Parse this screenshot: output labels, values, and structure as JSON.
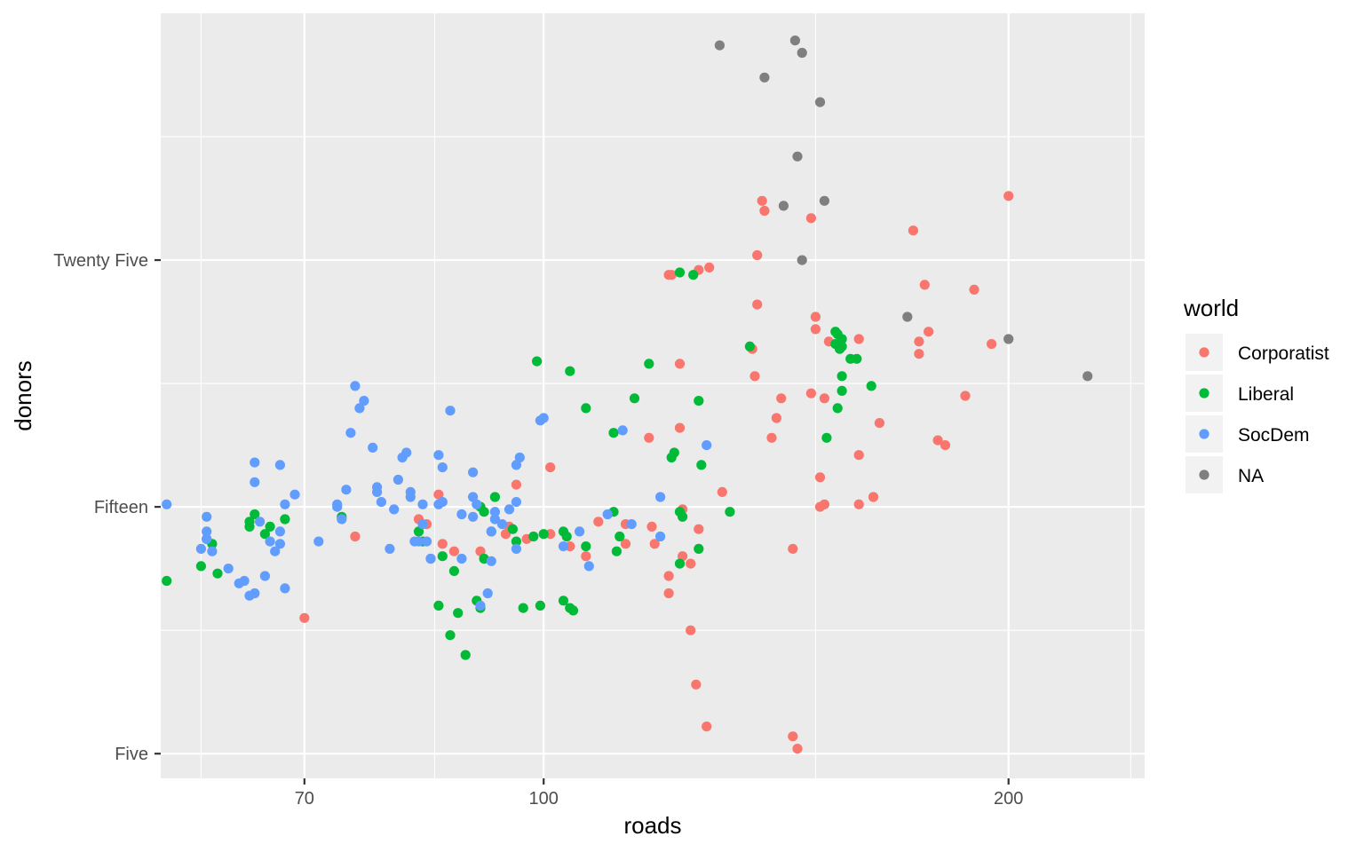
{
  "chart_data": {
    "type": "scatter",
    "xlabel": "roads",
    "ylabel": "donors",
    "x_scale": "log",
    "xlim": [
      56.5,
      245
    ],
    "ylim": [
      4,
      35
    ],
    "x_ticks": [
      {
        "value": 70,
        "label": "70"
      },
      {
        "value": 100,
        "label": "100"
      },
      {
        "value": 200,
        "label": "200"
      }
    ],
    "x_minor_ticks": [
      60,
      85,
      150,
      240
    ],
    "y_ticks": [
      {
        "value": 5,
        "label": "Five"
      },
      {
        "value": 15,
        "label": "Fifteen"
      },
      {
        "value": 25,
        "label": "Twenty Five"
      }
    ],
    "y_minor_ticks": [
      10,
      20,
      30
    ],
    "grid": true,
    "legend": {
      "title": "world",
      "position": "right",
      "entries": [
        "Corporatist",
        "Liberal",
        "SocDem",
        "NA"
      ]
    },
    "colors": {
      "Corporatist": "#F8766D",
      "Liberal": "#00BA38",
      "SocDem": "#619CFF",
      "NA": "#7F7F7F",
      "panel_background": "#EBEBEB",
      "grid": "#FFFFFF"
    },
    "series": [
      {
        "name": "Corporatist",
        "points": [
          [
            200.0,
            27.6
          ],
          [
            173.5,
            26.2
          ],
          [
            176.5,
            24.0
          ],
          [
            175.0,
            21.7
          ],
          [
            175.0,
            21.2
          ],
          [
            177.5,
            22.1
          ],
          [
            190.0,
            23.8
          ],
          [
            195.0,
            21.6
          ],
          [
            187.5,
            19.5
          ],
          [
            180.0,
            17.7
          ],
          [
            182.0,
            17.5
          ],
          [
            165.0,
            18.4
          ],
          [
            160.0,
            21.8
          ],
          [
            160.0,
            17.1
          ],
          [
            163.5,
            15.4
          ],
          [
            160.0,
            15.1
          ],
          [
            152.0,
            15.1
          ],
          [
            151.0,
            15.0
          ],
          [
            151.0,
            16.2
          ],
          [
            152.0,
            19.4
          ],
          [
            153.0,
            21.7
          ],
          [
            150.0,
            22.2
          ],
          [
            150.0,
            22.7
          ],
          [
            149.0,
            19.6
          ],
          [
            149.0,
            26.7
          ],
          [
            142.5,
            19.4
          ],
          [
            140.5,
            17.8
          ],
          [
            141.5,
            18.6
          ],
          [
            139.0,
            27.0
          ],
          [
            138.5,
            27.4
          ],
          [
            137.5,
            23.2
          ],
          [
            136.5,
            21.4
          ],
          [
            137.0,
            20.3
          ],
          [
            137.5,
            25.2
          ],
          [
            145.0,
            13.3
          ],
          [
            128.0,
            24.7
          ],
          [
            126.0,
            24.6
          ],
          [
            121.0,
            24.4
          ],
          [
            120.5,
            24.4
          ],
          [
            122.5,
            20.8
          ],
          [
            122.5,
            18.2
          ],
          [
            117.0,
            17.8
          ],
          [
            130.5,
            15.6
          ],
          [
            123.0,
            14.9
          ],
          [
            126.0,
            14.1
          ],
          [
            117.5,
            14.2
          ],
          [
            113.0,
            14.3
          ],
          [
            118.0,
            13.5
          ],
          [
            123.0,
            13.0
          ],
          [
            124.5,
            12.7
          ],
          [
            120.5,
            12.2
          ],
          [
            120.5,
            11.5
          ],
          [
            124.5,
            10.0
          ],
          [
            125.5,
            7.8
          ],
          [
            127.5,
            6.1
          ],
          [
            145.0,
            5.7
          ],
          [
            146.0,
            5.2
          ],
          [
            101.0,
            16.6
          ],
          [
            101.0,
            13.9
          ],
          [
            104.0,
            13.4
          ],
          [
            106.5,
            13.0
          ],
          [
            113.0,
            13.5
          ],
          [
            108.5,
            14.4
          ],
          [
            96.0,
            15.9
          ],
          [
            95.0,
            14.2
          ],
          [
            94.5,
            13.9
          ],
          [
            97.5,
            13.7
          ],
          [
            91.0,
            13.2
          ],
          [
            87.5,
            13.2
          ],
          [
            86.0,
            13.5
          ],
          [
            85.5,
            15.5
          ],
          [
            84.5,
            12.9
          ],
          [
            84.0,
            14.3
          ],
          [
            83.0,
            14.5
          ],
          [
            75.5,
            13.8
          ],
          [
            70.0,
            10.5
          ]
        ]
      },
      {
        "name": "Liberal",
        "points": [
          [
            122.5,
            24.5
          ],
          [
            125.0,
            24.4
          ],
          [
            136.0,
            21.5
          ],
          [
            126.0,
            19.3
          ],
          [
            163.0,
            19.9
          ],
          [
            159.5,
            21.0
          ],
          [
            158.0,
            21.0
          ],
          [
            155.0,
            22.0
          ],
          [
            156.0,
            21.8
          ],
          [
            154.5,
            21.6
          ],
          [
            154.5,
            22.1
          ],
          [
            155.5,
            21.4
          ],
          [
            156.0,
            21.5
          ],
          [
            156.0,
            20.3
          ],
          [
            156.0,
            19.7
          ],
          [
            155.0,
            19.0
          ],
          [
            152.5,
            17.8
          ],
          [
            114.5,
            19.4
          ],
          [
            106.5,
            19.0
          ],
          [
            111.0,
            18.0
          ],
          [
            117.0,
            20.8
          ],
          [
            99.0,
            20.9
          ],
          [
            104.0,
            20.5
          ],
          [
            121.5,
            17.2
          ],
          [
            122.5,
            14.8
          ],
          [
            132.0,
            14.8
          ],
          [
            111.0,
            14.8
          ],
          [
            112.0,
            13.8
          ],
          [
            103.0,
            14.0
          ],
          [
            106.5,
            13.4
          ],
          [
            111.5,
            13.2
          ],
          [
            121.0,
            17.0
          ],
          [
            126.5,
            16.7
          ],
          [
            123.0,
            14.6
          ],
          [
            126.0,
            13.3
          ],
          [
            122.5,
            12.7
          ],
          [
            103.5,
            13.8
          ],
          [
            100.0,
            13.9
          ],
          [
            98.5,
            13.8
          ],
          [
            93.0,
            15.4
          ],
          [
            91.0,
            15.0
          ],
          [
            91.5,
            14.8
          ],
          [
            95.5,
            14.1
          ],
          [
            92.5,
            14.0
          ],
          [
            96.0,
            13.6
          ],
          [
            91.5,
            12.9
          ],
          [
            83.5,
            13.6
          ],
          [
            83.0,
            14.0
          ],
          [
            86.0,
            13.0
          ],
          [
            87.5,
            12.4
          ],
          [
            85.5,
            11.0
          ],
          [
            88.0,
            10.7
          ],
          [
            87.0,
            9.8
          ],
          [
            89.0,
            9.0
          ],
          [
            90.5,
            11.2
          ],
          [
            91.0,
            10.9
          ],
          [
            103.0,
            11.2
          ],
          [
            104.0,
            10.9
          ],
          [
            104.5,
            10.8
          ],
          [
            97.0,
            10.9
          ],
          [
            99.5,
            11.0
          ],
          [
            66.0,
            13.9
          ],
          [
            66.5,
            14.2
          ],
          [
            64.5,
            14.4
          ],
          [
            64.5,
            14.2
          ],
          [
            65.0,
            14.7
          ],
          [
            68.0,
            14.5
          ],
          [
            74.0,
            14.6
          ],
          [
            60.5,
            13.7
          ],
          [
            61.0,
            13.5
          ],
          [
            60.0,
            12.6
          ],
          [
            61.5,
            12.3
          ],
          [
            57.0,
            12.0
          ]
        ]
      },
      {
        "name": "SocDem",
        "points": [
          [
            57.0,
            15.1
          ],
          [
            60.5,
            14.6
          ],
          [
            60.5,
            14.0
          ],
          [
            60.5,
            13.7
          ],
          [
            60.0,
            13.3
          ],
          [
            61.0,
            13.2
          ],
          [
            65.5,
            14.4
          ],
          [
            62.5,
            12.5
          ],
          [
            63.5,
            11.9
          ],
          [
            64.0,
            12.0
          ],
          [
            65.0,
            11.5
          ],
          [
            64.5,
            11.4
          ],
          [
            66.0,
            12.2
          ],
          [
            66.5,
            13.6
          ],
          [
            67.5,
            14.0
          ],
          [
            67.0,
            13.2
          ],
          [
            67.5,
            13.5
          ],
          [
            68.0,
            11.7
          ],
          [
            68.0,
            15.1
          ],
          [
            69.0,
            15.5
          ],
          [
            67.5,
            16.7
          ],
          [
            65.0,
            16.0
          ],
          [
            65.0,
            16.8
          ],
          [
            71.5,
            13.6
          ],
          [
            73.5,
            15.0
          ],
          [
            74.0,
            14.5
          ],
          [
            74.5,
            15.7
          ],
          [
            73.5,
            15.1
          ],
          [
            75.0,
            18.0
          ],
          [
            75.5,
            19.9
          ],
          [
            76.0,
            19.0
          ],
          [
            76.5,
            19.3
          ],
          [
            77.5,
            17.4
          ],
          [
            78.5,
            15.2
          ],
          [
            78.0,
            15.8
          ],
          [
            78.0,
            15.6
          ],
          [
            79.5,
            13.3
          ],
          [
            80.0,
            14.9
          ],
          [
            80.5,
            16.1
          ],
          [
            81.0,
            17.0
          ],
          [
            81.5,
            17.2
          ],
          [
            82.0,
            15.6
          ],
          [
            82.0,
            15.4
          ],
          [
            83.5,
            15.1
          ],
          [
            82.5,
            13.6
          ],
          [
            83.0,
            13.6
          ],
          [
            84.0,
            13.6
          ],
          [
            83.5,
            14.3
          ],
          [
            84.5,
            12.9
          ],
          [
            85.5,
            15.1
          ],
          [
            86.0,
            15.2
          ],
          [
            86.0,
            16.6
          ],
          [
            85.5,
            17.1
          ],
          [
            87.0,
            18.9
          ],
          [
            88.5,
            14.7
          ],
          [
            88.5,
            12.9
          ],
          [
            90.0,
            14.6
          ],
          [
            90.0,
            15.4
          ],
          [
            90.0,
            16.4
          ],
          [
            90.5,
            15.1
          ],
          [
            92.0,
            11.5
          ],
          [
            91.0,
            11.0
          ],
          [
            92.5,
            12.8
          ],
          [
            92.5,
            14.0
          ],
          [
            93.0,
            14.5
          ],
          [
            93.0,
            14.8
          ],
          [
            94.0,
            14.3
          ],
          [
            95.0,
            14.9
          ],
          [
            96.0,
            13.3
          ],
          [
            96.0,
            15.2
          ],
          [
            96.5,
            17.0
          ],
          [
            96.0,
            16.7
          ],
          [
            99.5,
            18.5
          ],
          [
            100.0,
            18.6
          ],
          [
            103.0,
            13.4
          ],
          [
            105.5,
            14.0
          ],
          [
            107.0,
            12.6
          ],
          [
            110.0,
            14.7
          ],
          [
            112.5,
            18.1
          ],
          [
            114.0,
            14.3
          ],
          [
            119.0,
            15.4
          ],
          [
            119.0,
            13.8
          ],
          [
            127.5,
            17.5
          ]
        ]
      },
      {
        "name": "NA",
        "points": [
          [
            130.0,
            33.7
          ],
          [
            145.5,
            33.9
          ],
          [
            147.0,
            33.4
          ],
          [
            139.0,
            32.4
          ],
          [
            151.0,
            31.4
          ],
          [
            146.0,
            29.2
          ],
          [
            143.0,
            27.2
          ],
          [
            152.0,
            27.4
          ],
          [
            147.0,
            25.0
          ],
          [
            172.0,
            22.7
          ],
          [
            200.0,
            21.8
          ],
          [
            225.0,
            20.3
          ]
        ]
      }
    ]
  }
}
